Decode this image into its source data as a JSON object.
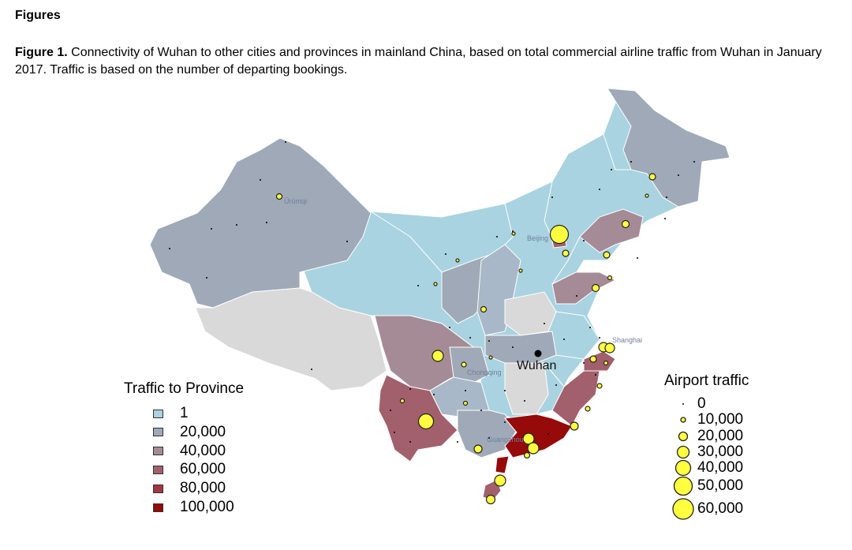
{
  "heading": "Figures",
  "caption": {
    "label": "Figure 1.",
    "text": " Connectivity of Wuhan to other cities and provinces in mainland China, based on total commercial airline traffic from Wuhan in January 2017. Traffic is based on the number of departing bookings."
  },
  "map": {
    "city_labels": {
      "urumqi": "Ürümqi",
      "beijing": "Beijing",
      "shanghai": "Shanghai",
      "chongqing": "Chongqing",
      "guangzhou": "Guangzhou"
    },
    "wuhan_label": "Wuhan"
  },
  "province_legend": {
    "title": "Traffic to Province",
    "items": [
      {
        "label": "1",
        "color": "#a9d3e0"
      },
      {
        "label": "20,000",
        "color": "#9fa9b7"
      },
      {
        "label": "40,000",
        "color": "#a48b96"
      },
      {
        "label": "60,000",
        "color": "#a25f6c"
      },
      {
        "label": "80,000",
        "color": "#a3363f"
      },
      {
        "label": "100,000",
        "color": "#960a0a"
      }
    ]
  },
  "airport_legend": {
    "title": "Airport traffic",
    "items": [
      {
        "label": "0"
      },
      {
        "label": "10,000"
      },
      {
        "label": "20,000"
      },
      {
        "label": "30,000"
      },
      {
        "label": "40,000"
      },
      {
        "label": "50,000"
      },
      {
        "label": "60,000"
      }
    ]
  },
  "colors": {
    "no_data": "#d9d9d9",
    "airport_fill": "#ffff40",
    "province_border": "#ffffff"
  }
}
